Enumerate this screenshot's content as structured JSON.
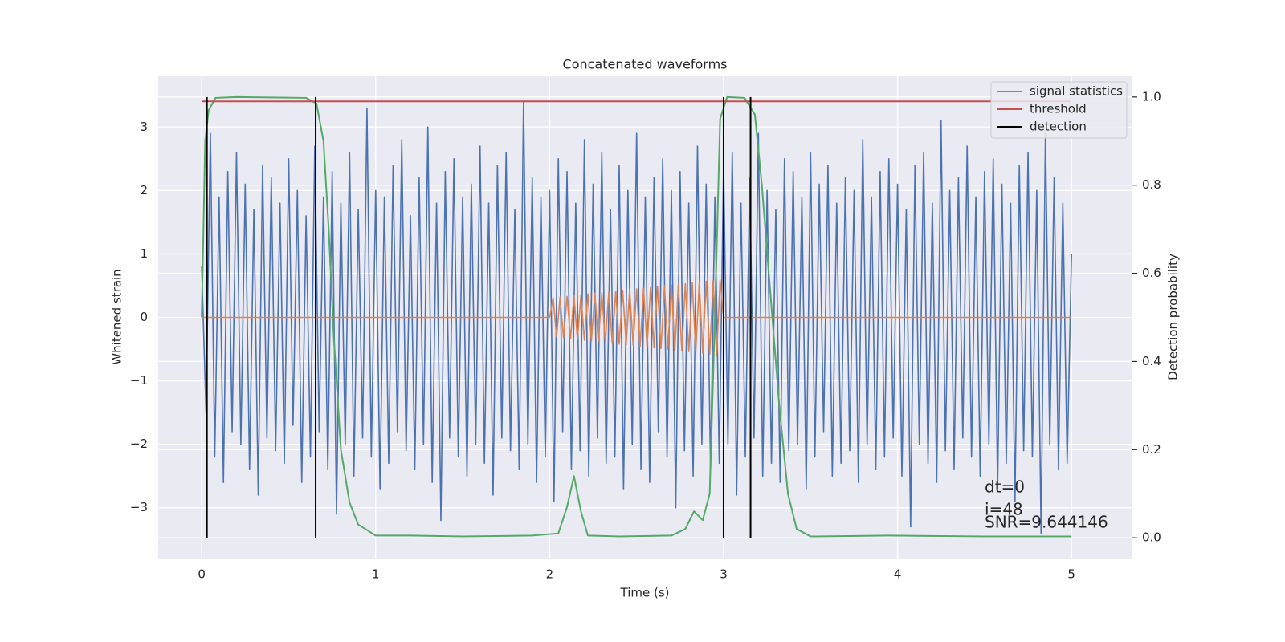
{
  "chart_data": {
    "type": "line",
    "title": "Concatenated waveforms",
    "xlabel": "Time (s)",
    "ylabel": "Whitened strain",
    "y2label": "Detection probability",
    "annotations": [
      "dt=0",
      "i=48",
      "SNR=9.644146"
    ],
    "xlim": [
      -0.25,
      5.35
    ],
    "ylim": [
      -3.8,
      3.8
    ],
    "y2lim": [
      -0.047,
      1.047
    ],
    "xticks": [
      0,
      1,
      2,
      3,
      4,
      5
    ],
    "yticks": [
      {
        "value": -3,
        "label": "−3"
      },
      {
        "value": -2,
        "label": "−2"
      },
      {
        "value": -1,
        "label": "−1"
      },
      0,
      1,
      2,
      3
    ],
    "y2ticks": [
      {
        "value": 0,
        "label": "0.0"
      },
      0.2,
      0.4,
      0.6,
      0.8,
      {
        "value": 1,
        "label": "1.0"
      }
    ],
    "grid": true,
    "legend": "upper right",
    "series": [
      {
        "color": "#4c72b0",
        "x": [
          0,
          0.025,
          0.05,
          0.075,
          0.1,
          0.125,
          0.15,
          0.175,
          0.2,
          0.225,
          0.25,
          0.275,
          0.3,
          0.325,
          0.35,
          0.375,
          0.4,
          0.425,
          0.45,
          0.475,
          0.5,
          0.525,
          0.55,
          0.575,
          0.6,
          0.625,
          0.65,
          0.675,
          0.7,
          0.725,
          0.75,
          0.775,
          0.8,
          0.825,
          0.85,
          0.875,
          0.9,
          0.925,
          0.95,
          0.975,
          1,
          1.025,
          1.05,
          1.075,
          1.1,
          1.125,
          1.15,
          1.175,
          1.2,
          1.225,
          1.25,
          1.275,
          1.3,
          1.325,
          1.35,
          1.375,
          1.4,
          1.425,
          1.45,
          1.475,
          1.5,
          1.525,
          1.55,
          1.575,
          1.6,
          1.625,
          1.65,
          1.675,
          1.7,
          1.725,
          1.75,
          1.775,
          1.8,
          1.825,
          1.85,
          1.875,
          1.9,
          1.925,
          1.95,
          1.975,
          2,
          2.025,
          2.05,
          2.075,
          2.1,
          2.125,
          2.15,
          2.175,
          2.2,
          2.225,
          2.25,
          2.275,
          2.3,
          2.325,
          2.35,
          2.375,
          2.4,
          2.425,
          2.45,
          2.475,
          2.5,
          2.525,
          2.55,
          2.575,
          2.6,
          2.625,
          2.65,
          2.675,
          2.7,
          2.725,
          2.75,
          2.775,
          2.8,
          2.825,
          2.85,
          2.875,
          2.9,
          2.925,
          2.95,
          2.975,
          3,
          3.025,
          3.05,
          3.075,
          3.1,
          3.125,
          3.15,
          3.175,
          3.2,
          3.225,
          3.25,
          3.275,
          3.3,
          3.325,
          3.35,
          3.375,
          3.4,
          3.425,
          3.45,
          3.475,
          3.5,
          3.525,
          3.55,
          3.575,
          3.6,
          3.625,
          3.65,
          3.675,
          3.7,
          3.725,
          3.75,
          3.775,
          3.8,
          3.825,
          3.85,
          3.875,
          3.9,
          3.925,
          3.95,
          3.975,
          4,
          4.025,
          4.05,
          4.075,
          4.1,
          4.125,
          4.15,
          4.175,
          4.2,
          4.225,
          4.25,
          4.275,
          4.3,
          4.325,
          4.35,
          4.375,
          4.4,
          4.425,
          4.45,
          4.475,
          4.5,
          4.525,
          4.55,
          4.575,
          4.6,
          4.625,
          4.65,
          4.675,
          4.7,
          4.725,
          4.75,
          4.775,
          4.8,
          4.825,
          4.85,
          4.875,
          4.9,
          4.925,
          4.95,
          4.975,
          5
        ],
        "values": [
          0.8,
          -1.5,
          2.9,
          -2.2,
          1.9,
          -2.6,
          2.3,
          -1.8,
          2.6,
          -2.0,
          2.1,
          -2.4,
          1.7,
          -2.8,
          2.4,
          -1.9,
          2.2,
          -2.1,
          1.8,
          -2.3,
          2.5,
          -1.7,
          2.0,
          -2.6,
          1.6,
          -2.2,
          2.7,
          -1.8,
          1.9,
          -2.4,
          2.3,
          -3.1,
          1.8,
          -2.0,
          2.6,
          -2.5,
          1.7,
          -1.9,
          3.3,
          -2.2,
          2.0,
          -2.7,
          1.9,
          -2.3,
          2.4,
          -1.8,
          2.8,
          -2.1,
          1.6,
          -2.4,
          2.2,
          -2.0,
          3.0,
          -2.6,
          1.8,
          -3.2,
          2.3,
          -1.9,
          2.5,
          -2.2,
          1.9,
          -2.5,
          2.1,
          -2.0,
          2.7,
          -2.3,
          1.8,
          -2.8,
          2.4,
          -1.9,
          2.6,
          -2.1,
          1.7,
          -2.4,
          3.4,
          -2.0,
          2.2,
          -2.6,
          1.9,
          -2.2,
          2.0,
          -2.9,
          2.5,
          -1.8,
          2.3,
          -2.4,
          1.8,
          -2.1,
          2.8,
          -2.5,
          2.1,
          -1.9,
          2.6,
          -2.3,
          1.7,
          -2.2,
          2.4,
          -2.7,
          2.0,
          -2.0,
          2.9,
          -2.4,
          1.9,
          -2.6,
          2.2,
          -1.8,
          2.5,
          -2.2,
          2.0,
          -3.0,
          2.3,
          -2.1,
          1.8,
          -2.5,
          2.7,
          -2.0,
          2.1,
          -2.4,
          1.9,
          -2.3,
          2.4,
          -2.0,
          2.6,
          -2.8,
          1.8,
          -2.2,
          2.2,
          -1.9,
          2.9,
          -2.5,
          2.0,
          -2.3,
          1.7,
          -2.6,
          2.5,
          -2.1,
          2.3,
          -2.0,
          1.9,
          -2.7,
          2.6,
          -2.2,
          2.1,
          -1.8,
          2.4,
          -2.5,
          1.8,
          -2.3,
          2.2,
          -2.1,
          2.0,
          -2.6,
          2.8,
          -2.0,
          1.9,
          -2.4,
          2.3,
          -2.2,
          2.5,
          -1.9,
          2.1,
          -2.5,
          1.7,
          -3.3,
          2.4,
          -2.0,
          2.6,
          -2.3,
          1.8,
          -2.6,
          3.1,
          -2.1,
          2.0,
          -2.4,
          2.2,
          -1.9,
          2.7,
          -2.2,
          1.9,
          -2.5,
          2.3,
          -2.0,
          2.5,
          -2.7,
          2.1,
          -2.3,
          1.8,
          -2.9,
          2.4,
          -2.1,
          2.6,
          -2.2,
          2.0,
          -3.4,
          2.9,
          -2.0,
          2.2,
          -2.4,
          1.8,
          -2.3,
          1.0
        ]
      },
      {
        "color": "#dd8452",
        "x": [
          0,
          2,
          2.02,
          2.04,
          2.06,
          2.08,
          2.1,
          2.12,
          2.14,
          2.16,
          2.18,
          2.2,
          2.22,
          2.24,
          2.26,
          2.28,
          2.3,
          2.32,
          2.34,
          2.36,
          2.38,
          2.4,
          2.42,
          2.44,
          2.46,
          2.48,
          2.5,
          2.52,
          2.54,
          2.56,
          2.58,
          2.6,
          2.62,
          2.64,
          2.66,
          2.68,
          2.7,
          2.72,
          2.74,
          2.76,
          2.78,
          2.8,
          2.82,
          2.84,
          2.86,
          2.88,
          2.9,
          2.92,
          2.94,
          2.96,
          2.98,
          3,
          5
        ],
        "values": [
          0,
          0,
          0.31,
          -0.31,
          0.32,
          -0.32,
          0.33,
          -0.34,
          0.34,
          -0.35,
          0.35,
          -0.36,
          0.37,
          -0.37,
          0.38,
          -0.38,
          0.39,
          -0.4,
          0.4,
          -0.41,
          0.41,
          -0.42,
          0.43,
          -0.43,
          0.44,
          -0.44,
          0.45,
          -0.46,
          0.46,
          -0.47,
          0.47,
          -0.48,
          0.49,
          -0.49,
          0.5,
          -0.5,
          0.51,
          -0.52,
          0.52,
          -0.53,
          0.53,
          -0.54,
          0.55,
          -0.55,
          0.56,
          -0.56,
          0.57,
          -0.58,
          0.58,
          -0.59,
          0.59,
          0,
          0
        ]
      },
      {
        "name": "signal statistics",
        "color": "#55a868",
        "axis": "y2",
        "x": [
          0,
          0.02,
          0.04,
          0.08,
          0.2,
          0.6,
          0.66,
          0.7,
          0.73,
          0.76,
          0.8,
          0.85,
          0.9,
          1.0,
          1.2,
          1.5,
          1.9,
          2.05,
          2.1,
          2.14,
          2.18,
          2.22,
          2.4,
          2.7,
          2.78,
          2.83,
          2.88,
          2.92,
          2.95,
          2.98,
          3.02,
          3.12,
          3.18,
          3.22,
          3.27,
          3.32,
          3.37,
          3.42,
          3.5,
          3.95,
          4.5,
          5.0
        ],
        "values": [
          0.5,
          0.9,
          0.97,
          0.998,
          1.0,
          0.998,
          0.985,
          0.9,
          0.7,
          0.45,
          0.2,
          0.08,
          0.03,
          0.005,
          0.005,
          0.003,
          0.005,
          0.01,
          0.07,
          0.14,
          0.06,
          0.005,
          0.003,
          0.005,
          0.02,
          0.06,
          0.04,
          0.1,
          0.5,
          0.95,
          1.0,
          0.998,
          0.96,
          0.8,
          0.55,
          0.3,
          0.1,
          0.02,
          0.003,
          0.005,
          0.003,
          0.003
        ]
      },
      {
        "name": "threshold",
        "color": "#c44e52",
        "axis": "y2",
        "x": [
          0,
          5
        ],
        "values": [
          0.99,
          0.99
        ]
      },
      {
        "name": "detection",
        "color": "#000000",
        "axis": "y2",
        "type": "vlines",
        "x": [
          0.03,
          0.655,
          3.0,
          3.155
        ],
        "values": [
          1,
          1,
          1,
          1
        ]
      }
    ]
  }
}
